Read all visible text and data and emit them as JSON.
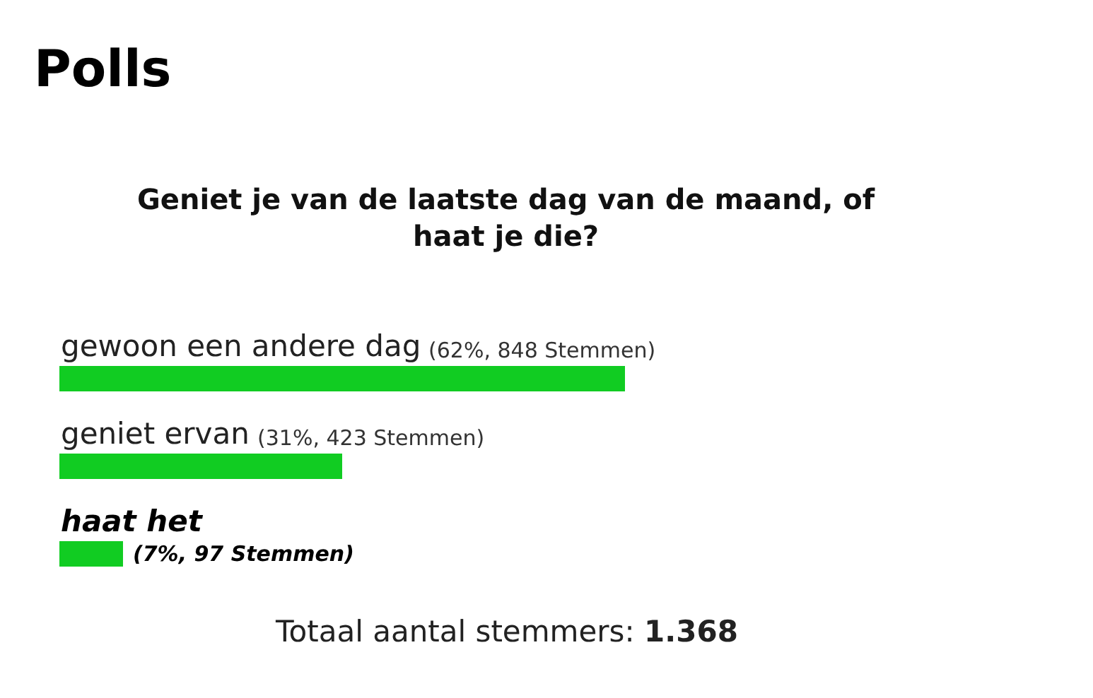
{
  "chart_data": {
    "type": "bar",
    "orientation": "horizontal",
    "title": "Polls",
    "subtitle": "Geniet je van de laatste dag van de maand, of haat je die?",
    "categories": [
      "gewoon een andere dag",
      "geniet ervan",
      "haat het"
    ],
    "values": [
      62,
      31,
      7
    ],
    "value_labels": [
      "(62%, 848 Stemmen)",
      "(31%, 423 Stemmen)",
      "(7%, 97 Stemmen)"
    ],
    "color": "#11cc22",
    "annotations": [
      "Totaal aantal stemmers: 1.368"
    ]
  }
}
